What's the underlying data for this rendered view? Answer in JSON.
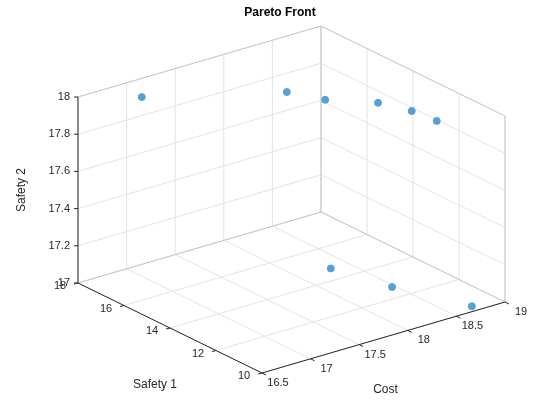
{
  "chart_data": {
    "type": "scatter3d",
    "title": "Pareto Front",
    "x_label": "Cost",
    "y_label": "Safety 1",
    "z_label": "Safety 2",
    "x": [
      16.91,
      17.91,
      18.08,
      18.38,
      18.49,
      18.52,
      18.32,
      18.47,
      18.73
    ],
    "y": [
      16.96,
      14.88,
      13.93,
      12.9,
      11.9,
      10.94,
      14.7,
      12.67,
      10.3
    ],
    "z": [
      18.0,
      18.0,
      17.99,
      17.99,
      17.99,
      17.99,
      17.0,
      17.0,
      17.0
    ],
    "xlim": [
      16.5,
      19
    ],
    "xticks": [
      16.5,
      17,
      17.5,
      18,
      18.5,
      19
    ],
    "ylim": [
      10,
      18
    ],
    "yticks": [
      10,
      12,
      14,
      16,
      18
    ],
    "zlim": [
      17,
      18
    ],
    "zticks": [
      17,
      17.2,
      17.4,
      17.6,
      17.8,
      18
    ],
    "grid": true,
    "color": "#56a0d3",
    "marker": "circle"
  }
}
